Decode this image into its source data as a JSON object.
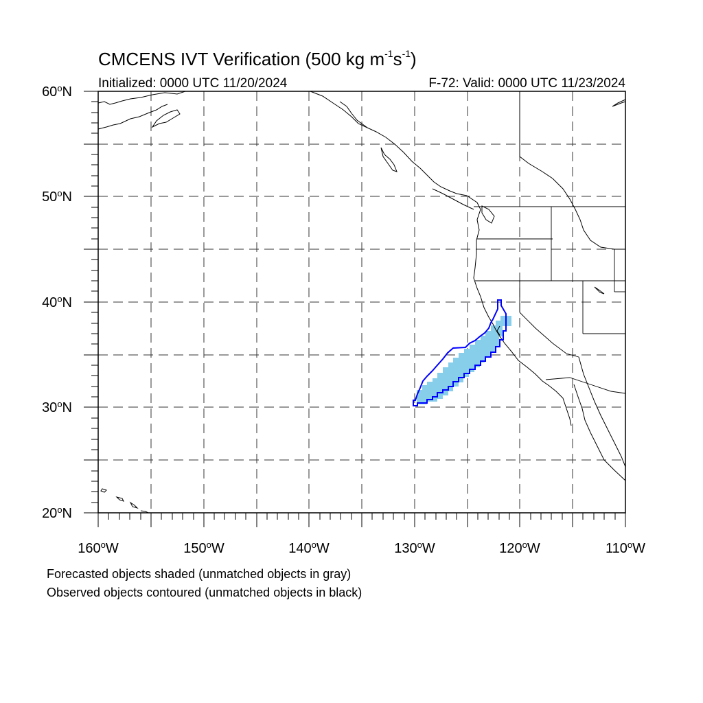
{
  "header": {
    "title_main": "CMCENS IVT Verification (500 kg m",
    "title_exp1": "-1",
    "title_mid": "s",
    "title_exp2": "-1",
    "title_end": ")",
    "initialized": "Initialized: 0000 UTC 11/20/2024",
    "valid": "F-72: Valid: 0000 UTC 11/23/2024"
  },
  "axes": {
    "lat_ticks": [
      {
        "value": "60",
        "suffix": "N"
      },
      {
        "value": "50",
        "suffix": "N"
      },
      {
        "value": "40",
        "suffix": "N"
      },
      {
        "value": "30",
        "suffix": "N"
      },
      {
        "value": "20",
        "suffix": "N"
      }
    ],
    "lon_ticks": [
      {
        "value": "160",
        "suffix": "W"
      },
      {
        "value": "150",
        "suffix": "W"
      },
      {
        "value": "140",
        "suffix": "W"
      },
      {
        "value": "130",
        "suffix": "W"
      },
      {
        "value": "120",
        "suffix": "W"
      },
      {
        "value": "110",
        "suffix": "W"
      }
    ],
    "deg_symbol": "o",
    "lat_range": [
      20,
      60
    ],
    "lon_range": [
      -160,
      -110
    ],
    "grid": "dashed"
  },
  "objects": {
    "forecast_color": "#87CEEB",
    "observed_color": "#0000FF",
    "coast_color": "#000000"
  },
  "legend": {
    "line1": "Forecasted objects shaded (unmatched objects in gray)",
    "line2": "Observed objects contoured (unmatched objects in black)"
  }
}
